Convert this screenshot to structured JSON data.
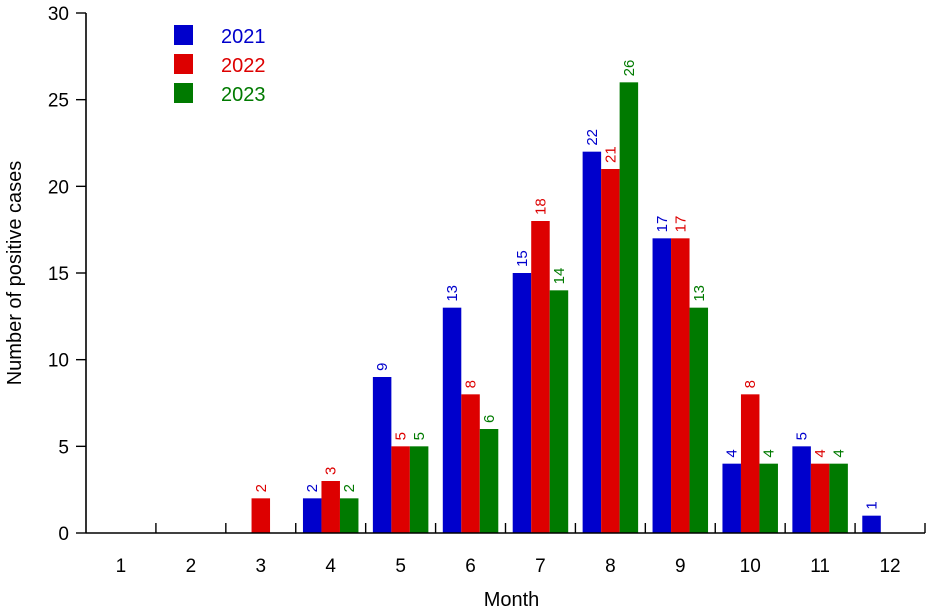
{
  "chart_data": {
    "type": "bar",
    "categories": [
      "1",
      "2",
      "3",
      "4",
      "5",
      "6",
      "7",
      "8",
      "9",
      "10",
      "11",
      "12"
    ],
    "series": [
      {
        "name": "2021",
        "color": "#0000cc",
        "values": [
          0,
          0,
          0,
          2,
          9,
          13,
          15,
          22,
          17,
          4,
          5,
          1
        ]
      },
      {
        "name": "2022",
        "color": "#dd0000",
        "values": [
          0,
          0,
          2,
          3,
          5,
          8,
          18,
          21,
          17,
          8,
          4,
          0
        ]
      },
      {
        "name": "2023",
        "color": "#007a00",
        "values": [
          0,
          0,
          0,
          2,
          5,
          6,
          14,
          26,
          13,
          4,
          4,
          0
        ]
      }
    ],
    "xlabel": "Month",
    "ylabel": "Number of positive cases",
    "ylim": [
      0,
      30
    ],
    "yticks": [
      0,
      5,
      10,
      15,
      20,
      25,
      30
    ],
    "legend_position": "top-left",
    "grid": false
  }
}
